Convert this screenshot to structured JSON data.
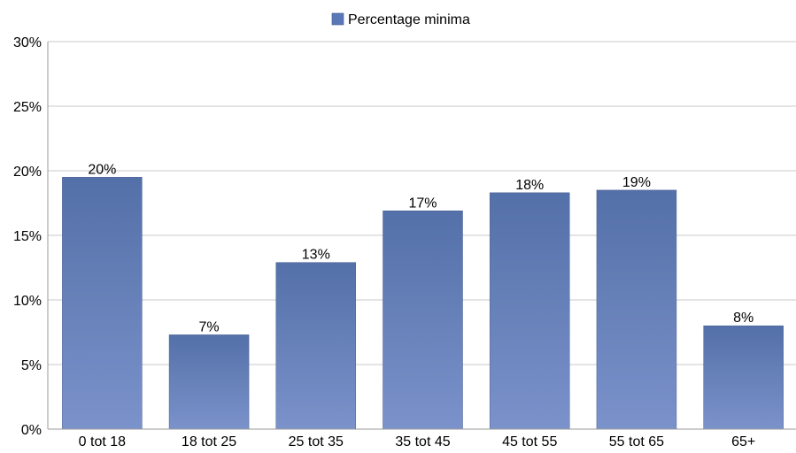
{
  "chart_data": {
    "type": "bar",
    "title": "",
    "xlabel": "",
    "ylabel": "",
    "categories": [
      "0 tot 18",
      "18 tot 25",
      "25 tot 35",
      "35 tot 45",
      "45 tot 55",
      "55 tot 65",
      "65+"
    ],
    "series": [
      {
        "name": "Percentage minima",
        "values": [
          19.5,
          7.3,
          12.9,
          16.9,
          18.3,
          18.5,
          8.0
        ],
        "data_labels": [
          "20%",
          "7%",
          "13%",
          "17%",
          "18%",
          "19%",
          "8%"
        ]
      }
    ],
    "ylim": [
      0,
      30
    ],
    "yticks": [
      0,
      5,
      10,
      15,
      20,
      25,
      30
    ],
    "ytick_labels": [
      "0%",
      "5%",
      "10%",
      "15%",
      "20%",
      "25%",
      "30%"
    ],
    "grid": true,
    "legend_position": "top-center",
    "colors": {
      "bar_top": "#5470a8",
      "bar_bottom": "#7b92cb",
      "legend_swatch": "#5a78b6",
      "gridline": "#c8c8c8",
      "axis": "#9a9a9a",
      "text": "#000000"
    }
  }
}
